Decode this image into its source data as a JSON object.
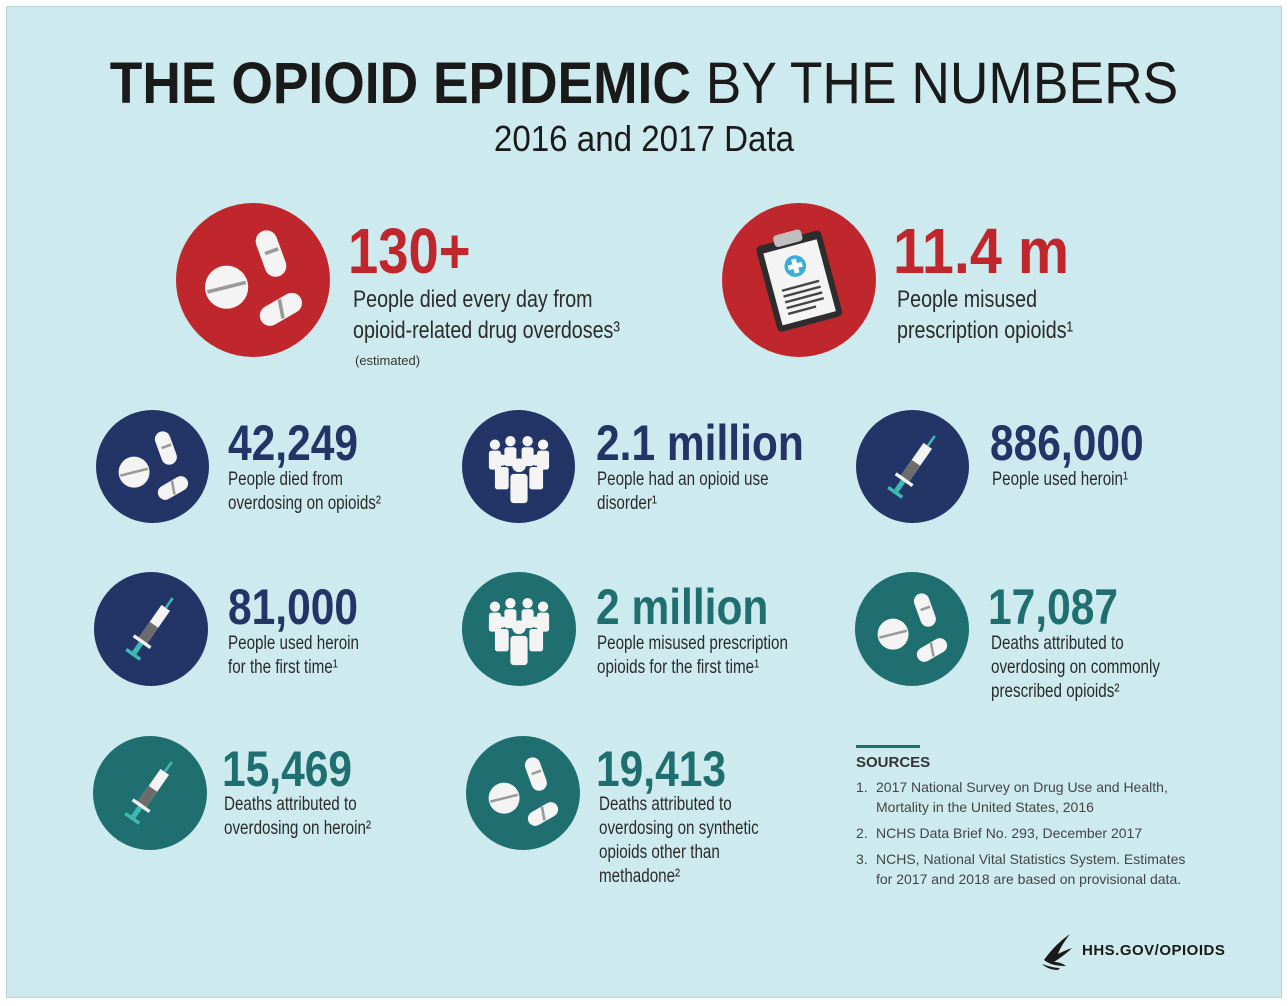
{
  "header": {
    "title_bold": "THE OPIOID EPIDEMIC",
    "title_light": "BY THE NUMBERS",
    "subtitle": "2016 and 2017 Data"
  },
  "stats": {
    "deaths_per_day": {
      "number": "130+",
      "description": "People died every day from\nopioid-related drug overdoses³",
      "note": "(estimated)",
      "icon": "pills-icon"
    },
    "misused_prescription": {
      "number": "11.4 m",
      "description": "People misused\nprescription opioids¹",
      "icon": "clipboard-prescription-icon"
    },
    "died_overdosing": {
      "number": "42,249",
      "description": "People died from\noverdosing on opioids²",
      "icon": "pills-icon"
    },
    "use_disorder": {
      "number": "2.1 million",
      "description": "People had an opioid use\ndisorder¹",
      "icon": "people-group-icon"
    },
    "used_heroin": {
      "number": "886,000",
      "description": "People used heroin¹",
      "icon": "syringe-icon"
    },
    "heroin_first_time": {
      "number": "81,000",
      "description": "People used heroin\nfor the first time¹",
      "icon": "syringe-icon"
    },
    "misused_first_time": {
      "number": "2 million",
      "description": "People misused prescription\nopioids for the first time¹",
      "icon": "people-group-icon"
    },
    "common_prescribed_deaths": {
      "number": "17,087",
      "description": "Deaths attributed to\noverdosing on commonly\nprescribed opioids²",
      "icon": "pills-icon"
    },
    "heroin_deaths": {
      "number": "15,469",
      "description": "Deaths attributed to\noverdosing on heroin²",
      "icon": "syringe-icon"
    },
    "synthetic_deaths": {
      "number": "19,413",
      "description": "Deaths attributed to\noverdosing on synthetic\nopioids other than\nmethadone²",
      "icon": "pills-icon"
    }
  },
  "sources": {
    "heading": "SOURCES",
    "items": [
      {
        "n": "1.",
        "text": "2017 National Survey on Drug Use and Health,\nMortality in the United States, 2016"
      },
      {
        "n": "2.",
        "text": "NCHS Data Brief No. 293, December 2017"
      },
      {
        "n": "3.",
        "text": "NCHS, National Vital Statistics System. Estimates\nfor 2017 and 2018 are based on provisional data."
      }
    ]
  },
  "footer": {
    "logo_text": "HHS.GOV/OPIOIDS"
  },
  "colors": {
    "background": "#cdebef",
    "red": "#c0272d",
    "navy": "#233467",
    "teal": "#1f6e70"
  }
}
